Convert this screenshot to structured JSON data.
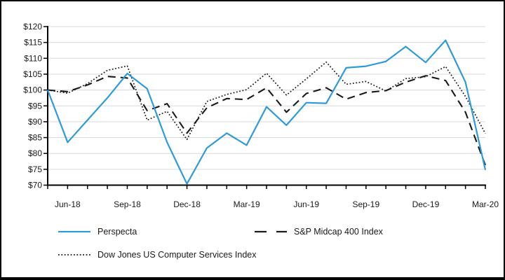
{
  "chart_data": {
    "type": "line",
    "title": "",
    "xlabel": "",
    "ylabel": "",
    "ylim": [
      70,
      120
    ],
    "y_tick_step": 5,
    "y_tick_labels": [
      "$120",
      "$115",
      "$110",
      "$105",
      "$100",
      "$95",
      "$90",
      "$85",
      "$80",
      "$75",
      "$70"
    ],
    "x_tick_labels": [
      "Jun-18",
      "Sep-18",
      "Dec-18",
      "Mar-19",
      "Jun-19",
      "Sep-19",
      "Dec-19",
      "Mar-20"
    ],
    "x_months": [
      "May-18",
      "Jun-18",
      "Jul-18",
      "Aug-18",
      "Sep-18",
      "Oct-18",
      "Nov-18",
      "Dec-18",
      "Jan-19",
      "Feb-19",
      "Mar-19",
      "Apr-19",
      "May-19",
      "Jun-19",
      "Jul-19",
      "Aug-19",
      "Sep-19",
      "Oct-19",
      "Nov-19",
      "Dec-19",
      "Jan-20",
      "Feb-20",
      "Mar-20"
    ],
    "grid": true,
    "legend_position": "bottom",
    "series": [
      {
        "name": "Perspecta",
        "style": "solid",
        "color": "#2e9bd8",
        "values": [
          100,
          83.5,
          90.5,
          97.5,
          105.2,
          100.4,
          83.5,
          70.4,
          81.7,
          86.4,
          82.6,
          94.7,
          88.9,
          96,
          95.8,
          107,
          107.5,
          109,
          113.7,
          108.7,
          115.7,
          102.5,
          74.8
        ]
      },
      {
        "name": "S&P Midcap 400 Index",
        "style": "dashed",
        "color": "#1a1a1a",
        "values": [
          100,
          99.5,
          101.6,
          104.3,
          103.8,
          93.5,
          95.7,
          86.4,
          94.4,
          97.3,
          97,
          100.7,
          93,
          98.9,
          100.7,
          97.1,
          99.2,
          99.8,
          102.5,
          104.5,
          103,
          93,
          76.3
        ]
      },
      {
        "name": "Dow Jones US Computer Services Index",
        "style": "dotted",
        "color": "#1a1a1a",
        "values": [
          100,
          99,
          102,
          106.2,
          107.6,
          90.5,
          93.3,
          84.4,
          96.4,
          98.6,
          100.1,
          105.3,
          98.4,
          103.5,
          108.8,
          101.8,
          102.7,
          99.7,
          103.6,
          104.2,
          107.4,
          98,
          86.3
        ]
      }
    ],
    "colors": {
      "axis": "#000000",
      "gridline": "#d9d9d9",
      "text": "#1a1a1a",
      "background": "#ffffff",
      "perspecta_blue": "#2e9bd8"
    }
  }
}
